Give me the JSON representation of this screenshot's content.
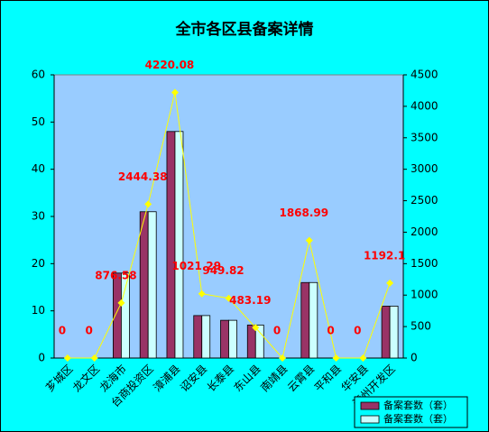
{
  "chart_data": {
    "type": "bar-line",
    "title": "全市各区县备案详情",
    "categories": [
      "芗城区",
      "龙文区",
      "龙海市",
      "台商投资区",
      "漳浦县",
      "诏安县",
      "长泰县",
      "东山县",
      "南靖县",
      "云霄县",
      "平和县",
      "华安县",
      "漳州开发区"
    ],
    "series": [
      {
        "name": "备案套数（套）",
        "color": "#993366",
        "type": "bar",
        "values": [
          0,
          0,
          18,
          31,
          48,
          9,
          8,
          7,
          0,
          16,
          0,
          0,
          11
        ]
      },
      {
        "name": "备案套数（套）",
        "color": "#ccffff",
        "type": "bar",
        "values": [
          0,
          0,
          18,
          31,
          48,
          9,
          8,
          7,
          0,
          16,
          0,
          0,
          11
        ]
      },
      {
        "color": "#ffff00",
        "type": "line",
        "axis": "y2",
        "values": [
          0,
          0,
          876.58,
          2444.38,
          4220.08,
          1021.29,
          949.82,
          483.19,
          0,
          1868.99,
          0,
          0,
          1192.1
        ]
      }
    ],
    "ylim": [
      0,
      60
    ],
    "yticks": [
      0,
      10,
      20,
      30,
      40,
      50,
      60
    ],
    "y2lim": [
      0,
      4500
    ],
    "y2ticks": [
      0,
      500,
      1000,
      1500,
      2000,
      2500,
      3000,
      3500,
      4000,
      4500
    ],
    "legend": "bottom-right"
  }
}
